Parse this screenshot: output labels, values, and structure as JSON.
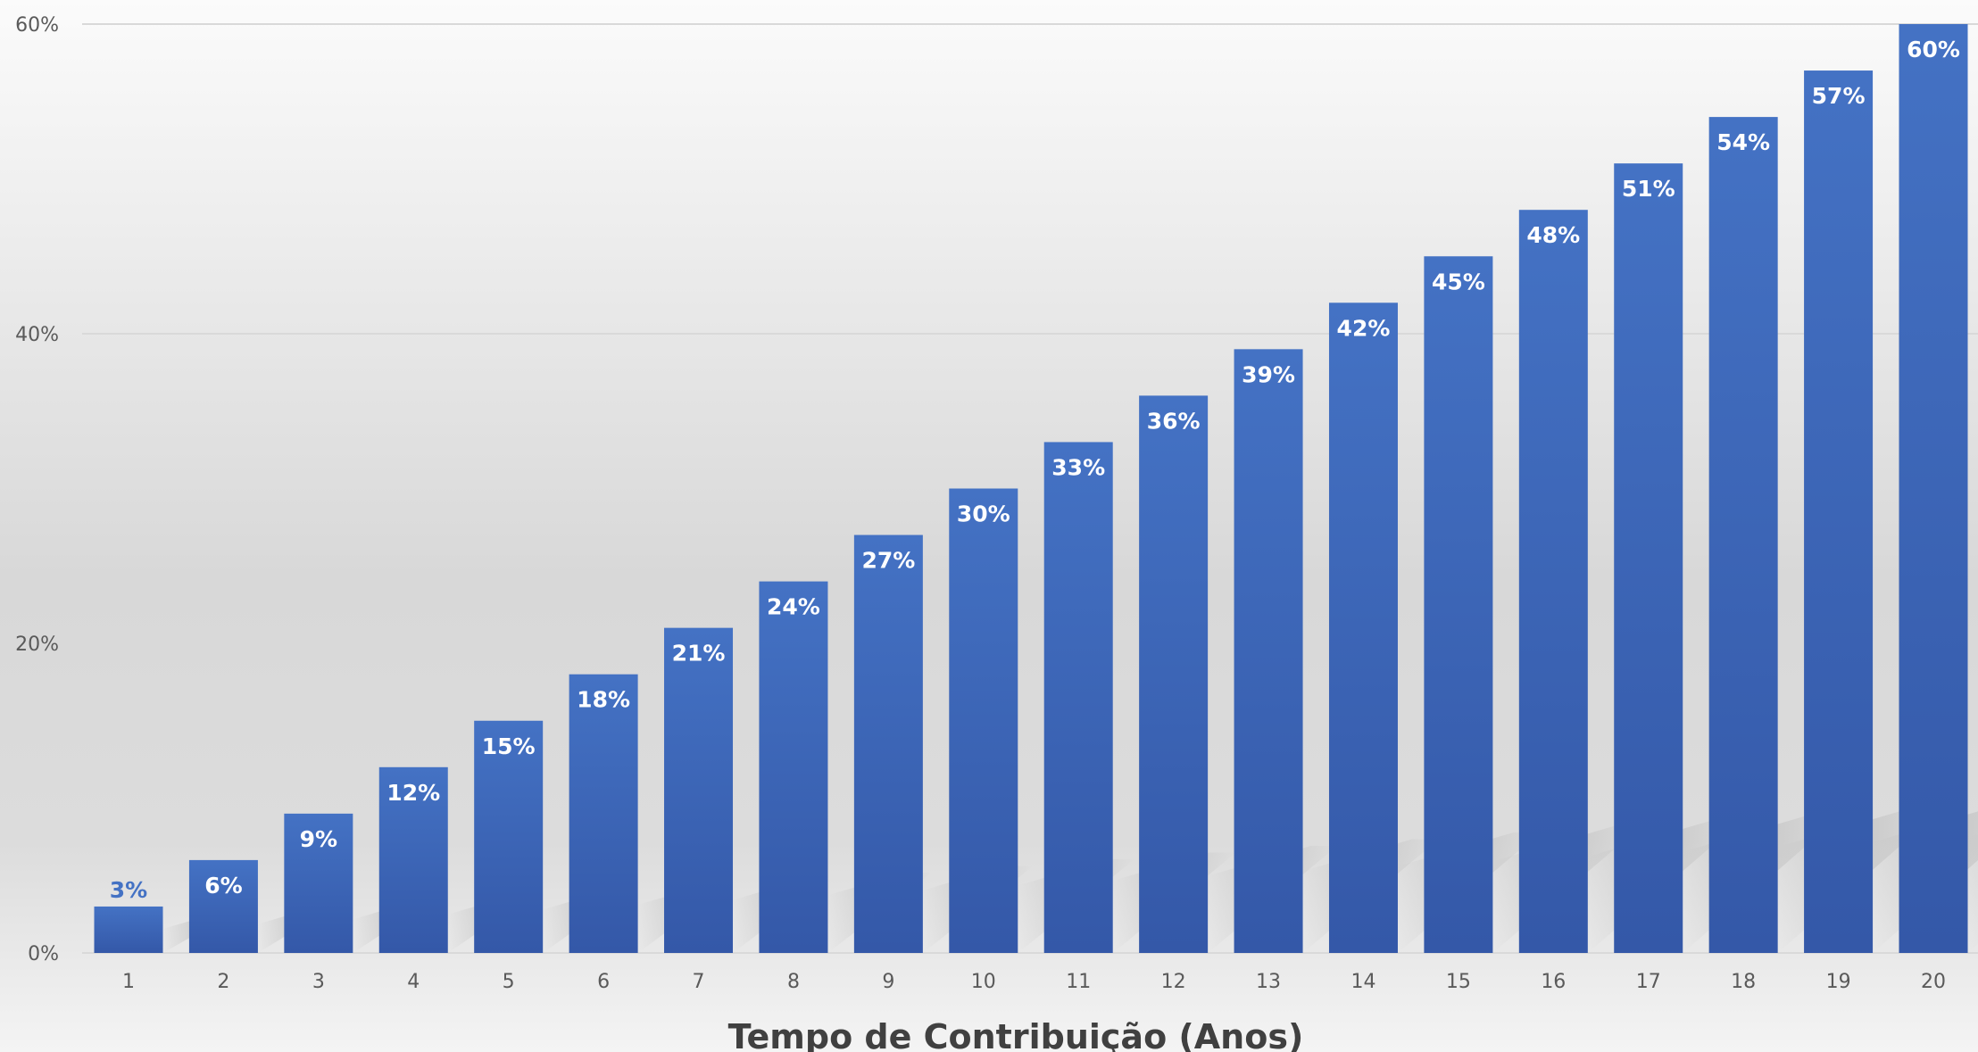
{
  "chart_data": {
    "type": "bar",
    "categories": [
      "1",
      "2",
      "3",
      "4",
      "5",
      "6",
      "7",
      "8",
      "9",
      "10",
      "11",
      "12",
      "13",
      "14",
      "15",
      "16",
      "17",
      "18",
      "19",
      "20"
    ],
    "values": [
      3,
      6,
      9,
      12,
      15,
      18,
      21,
      24,
      27,
      30,
      33,
      36,
      39,
      42,
      45,
      48,
      51,
      54,
      57,
      60
    ],
    "data_labels": [
      "3%",
      "6%",
      "9%",
      "12%",
      "15%",
      "18%",
      "21%",
      "24%",
      "27%",
      "30%",
      "33%",
      "36%",
      "39%",
      "42%",
      "45%",
      "48%",
      "51%",
      "54%",
      "57%",
      "60%"
    ],
    "title": "",
    "xlabel": "Tempo de Contribuição (Anos)",
    "ylabel": "",
    "ylim": [
      0,
      60
    ],
    "yticks": [
      0,
      20,
      40,
      60
    ],
    "ytick_labels": [
      "0%",
      "20%",
      "40%",
      "60%"
    ],
    "grid": true,
    "legend": "none",
    "colors": {
      "bar_top": "#4472c4",
      "bar_bottom": "#3458a8",
      "label_inside": "#ffffff",
      "label_outside": "#4472c4",
      "gridline": "#d9d9d9",
      "background_top": "#fafafa",
      "background_mid": "#d6d6d6"
    }
  }
}
